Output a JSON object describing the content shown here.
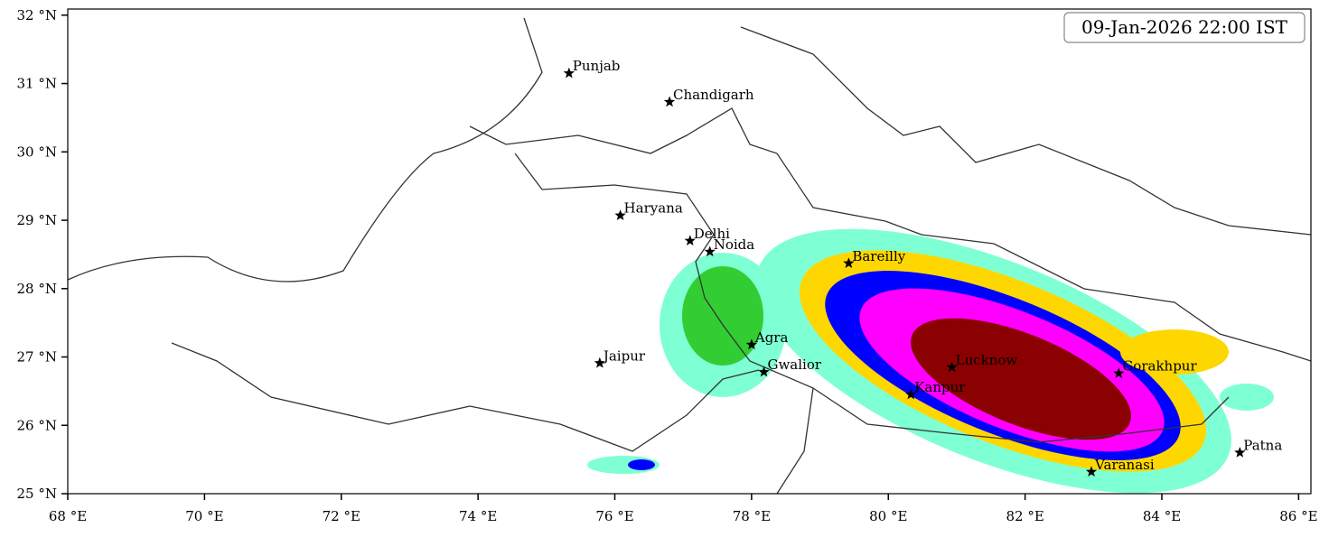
{
  "map": {
    "timestamp": "09-Jan-2026 22:00 IST",
    "xlim": [
      68,
      86.18
    ],
    "ylim": [
      25,
      32.09
    ],
    "xticks": [
      {
        "value": 68,
        "label": "68 °E"
      },
      {
        "value": 70,
        "label": "70 °E"
      },
      {
        "value": 72,
        "label": "72 °E"
      },
      {
        "value": 74,
        "label": "74 °E"
      },
      {
        "value": 76,
        "label": "76 °E"
      },
      {
        "value": 78,
        "label": "78 °E"
      },
      {
        "value": 80,
        "label": "80 °E"
      },
      {
        "value": 82,
        "label": "82 °E"
      },
      {
        "value": 84,
        "label": "84 °E"
      },
      {
        "value": 86,
        "label": "86 °E"
      }
    ],
    "yticks": [
      {
        "value": 25,
        "label": "25 °N"
      },
      {
        "value": 26,
        "label": "26 °N"
      },
      {
        "value": 27,
        "label": "27 °N"
      },
      {
        "value": 28,
        "label": "28 °N"
      },
      {
        "value": 29,
        "label": "29 °N"
      },
      {
        "value": 30,
        "label": "30 °N"
      },
      {
        "value": 31,
        "label": "31 °N"
      },
      {
        "value": 32,
        "label": "32 °N"
      }
    ],
    "cities": [
      {
        "name": "Punjab",
        "lon": 75.33,
        "lat": 31.15
      },
      {
        "name": "Chandigarh",
        "lon": 76.8,
        "lat": 30.73
      },
      {
        "name": "Haryana",
        "lon": 76.08,
        "lat": 29.07
      },
      {
        "name": "Delhi",
        "lon": 77.1,
        "lat": 28.7
      },
      {
        "name": "Noida",
        "lon": 77.39,
        "lat": 28.54
      },
      {
        "name": "Bareilly",
        "lon": 79.42,
        "lat": 28.37
      },
      {
        "name": "Agra",
        "lon": 78.0,
        "lat": 27.18
      },
      {
        "name": "Jaipur",
        "lon": 75.78,
        "lat": 26.91
      },
      {
        "name": "Gwalior",
        "lon": 78.18,
        "lat": 26.78
      },
      {
        "name": "Lucknow",
        "lon": 80.93,
        "lat": 26.85
      },
      {
        "name": "Kanpur",
        "lon": 80.33,
        "lat": 26.45
      },
      {
        "name": "Gorakhpur",
        "lon": 83.37,
        "lat": 26.76
      },
      {
        "name": "Varanasi",
        "lon": 82.97,
        "lat": 25.32
      },
      {
        "name": "Patna",
        "lon": 85.14,
        "lat": 25.6
      }
    ]
  }
}
